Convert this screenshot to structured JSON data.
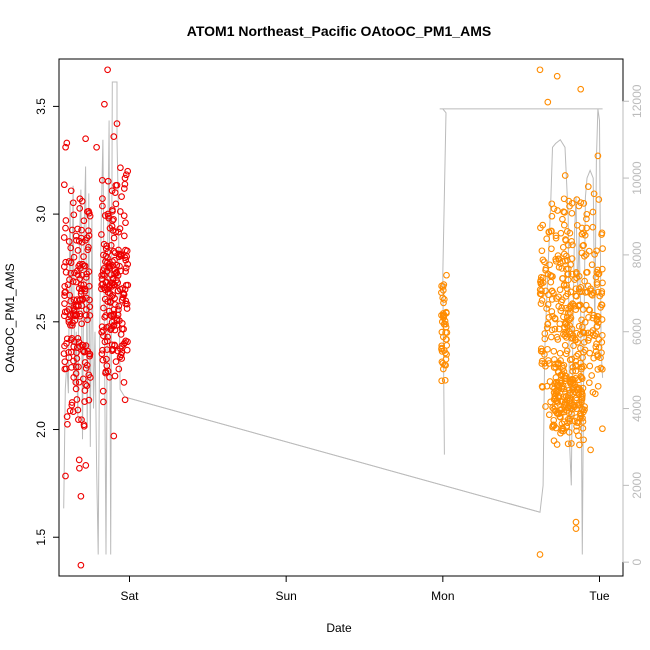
{
  "chart_data": {
    "type": "scatter",
    "title": "ATOM1 Northeast_Pacific OAtoOC_PM1_AMS",
    "xlabel": "Date",
    "ylabel": "OAtoOC_PM1_AMS",
    "x_ticks": [
      "Sat",
      "Sun",
      "Mon",
      "Tue"
    ],
    "x_tick_day_offsets": [
      0,
      1,
      2,
      3
    ],
    "xlim_days": [
      -0.45,
      3.15
    ],
    "ylim": [
      1.32,
      3.72
    ],
    "y_ticks": [
      1.5,
      2.0,
      2.5,
      3.0,
      3.5
    ],
    "y_tick_labels": [
      "1.5",
      "2.0",
      "2.5",
      "3.0",
      "3.5"
    ],
    "y2_label": "",
    "y2lim": [
      -360,
      13100
    ],
    "y2_ticks": [
      0,
      2000,
      4000,
      6000,
      8000,
      10000,
      12000
    ],
    "y2_tick_labels": [
      "0",
      "2000",
      "4000",
      "6000",
      "8000",
      "10000",
      "12000"
    ],
    "grid": false,
    "colors": {
      "series_red": "#ee0000",
      "series_orange": "#ff8c00",
      "line_gray": "#bbbbbb"
    },
    "series": [
      {
        "color": "#ee0000",
        "clusters": [
          {
            "x_range": [
              -0.42,
              -0.25
            ],
            "y_range": [
              1.7,
              3.35
            ],
            "n": 180,
            "seed": 11
          },
          {
            "x_range": [
              -0.18,
              -0.01
            ],
            "y_range": [
              1.95,
              3.4
            ],
            "n": 200,
            "seed": 23
          }
        ],
        "points": [
          {
            "x": -0.4,
            "y": 3.33
          },
          {
            "x": -0.31,
            "y": 1.37
          },
          {
            "x": -0.32,
            "y": 1.82
          },
          {
            "x": -0.14,
            "y": 3.67
          },
          {
            "x": -0.16,
            "y": 3.51
          },
          {
            "x": -0.21,
            "y": 3.31
          },
          {
            "x": -0.28,
            "y": 3.35
          },
          {
            "x": -0.1,
            "y": 3.36
          },
          {
            "x": -0.1,
            "y": 1.97
          },
          {
            "x": -0.31,
            "y": 1.69
          },
          {
            "x": -0.08,
            "y": 3.42
          }
        ]
      },
      {
        "color": "#ff8c00",
        "clusters": [
          {
            "x_range": [
              1.99,
              2.03
            ],
            "y_range": [
              2.12,
              2.8
            ],
            "n": 45,
            "seed": 37
          },
          {
            "x_range": [
              2.62,
              3.02
            ],
            "y_range": [
              1.8,
              3.3
            ],
            "n": 360,
            "seed": 51
          },
          {
            "x_range": [
              2.7,
              2.9
            ],
            "y_range": [
              1.85,
              2.45
            ],
            "n": 150,
            "seed": 67
          }
        ],
        "points": [
          {
            "x": 2.62,
            "y": 3.67
          },
          {
            "x": 2.73,
            "y": 3.64
          },
          {
            "x": 2.88,
            "y": 3.58
          },
          {
            "x": 2.62,
            "y": 1.42
          },
          {
            "x": 2.85,
            "y": 1.54
          },
          {
            "x": 2.85,
            "y": 1.57
          },
          {
            "x": 2.99,
            "y": 3.27
          },
          {
            "x": 2.67,
            "y": 3.52
          }
        ]
      }
    ],
    "secondary_line": {
      "color": "#bbbbbb",
      "points": [
        [
          -0.42,
          1400
        ],
        [
          -0.41,
          4500
        ],
        [
          -0.4,
          5200
        ],
        [
          -0.39,
          4400
        ],
        [
          -0.38,
          9400
        ],
        [
          -0.37,
          5600
        ],
        [
          -0.36,
          9800
        ],
        [
          -0.35,
          4600
        ],
        [
          -0.34,
          6000
        ],
        [
          -0.33,
          3800
        ],
        [
          -0.32,
          8300
        ],
        [
          -0.31,
          9700
        ],
        [
          -0.3,
          3200
        ],
        [
          -0.29,
          8600
        ],
        [
          -0.28,
          10300
        ],
        [
          -0.27,
          3500
        ],
        [
          -0.26,
          9600
        ],
        [
          -0.25,
          3000
        ],
        [
          -0.24,
          9000
        ],
        [
          -0.23,
          4000
        ],
        [
          -0.22,
          6000
        ],
        [
          -0.21,
          2500
        ],
        [
          -0.2,
          200
        ],
        [
          -0.19,
          6000
        ],
        [
          -0.18,
          9000
        ],
        [
          -0.17,
          11000
        ],
        [
          -0.16,
          6000
        ],
        [
          -0.15,
          200
        ],
        [
          -0.14,
          8000
        ],
        [
          -0.13,
          11500
        ],
        [
          -0.12,
          200
        ],
        [
          -0.11,
          12500
        ],
        [
          -0.08,
          12500
        ],
        [
          -0.08,
          11000
        ],
        [
          -0.07,
          9000
        ],
        [
          -0.06,
          4500
        ],
        [
          -0.03,
          4300
        ],
        [
          2.62,
          1300
        ],
        [
          2.64,
          2000
        ],
        [
          2.65,
          5500
        ],
        [
          2.66,
          6500
        ],
        [
          2.67,
          7500
        ],
        [
          2.68,
          8500
        ],
        [
          2.69,
          9500
        ],
        [
          2.7,
          10800
        ],
        [
          2.72,
          10900
        ],
        [
          2.75,
          11000
        ],
        [
          2.78,
          10800
        ],
        [
          2.8,
          9000
        ],
        [
          2.81,
          3000
        ],
        [
          2.82,
          2000
        ],
        [
          2.83,
          6000
        ],
        [
          2.84,
          8500
        ],
        [
          2.85,
          9500
        ],
        [
          2.86,
          7000
        ],
        [
          2.87,
          8500
        ],
        [
          2.88,
          6500
        ],
        [
          2.89,
          200
        ],
        [
          2.9,
          5500
        ],
        [
          2.91,
          9500
        ],
        [
          2.92,
          10000
        ],
        [
          2.94,
          10200
        ],
        [
          2.96,
          10000
        ],
        [
          2.97,
          6000
        ],
        [
          2.98,
          10500
        ],
        [
          2.99,
          11800
        ],
        [
          3.0,
          11500
        ],
        [
          3.01,
          5500
        ],
        [
          3.02,
          4800
        ]
      ],
      "mon_segment": [
        [
          1.98,
          11800
        ],
        [
          2.0,
          11800
        ],
        [
          2.02,
          11700
        ],
        [
          2.0,
          7500
        ],
        [
          2.01,
          2800
        ]
      ],
      "diagonal": [
        [
          -0.03,
          4300
        ],
        [
          2.62,
          1300
        ]
      ],
      "top_plateau": [
        [
          2.0,
          11800
        ],
        [
          3.02,
          11800
        ]
      ]
    }
  }
}
